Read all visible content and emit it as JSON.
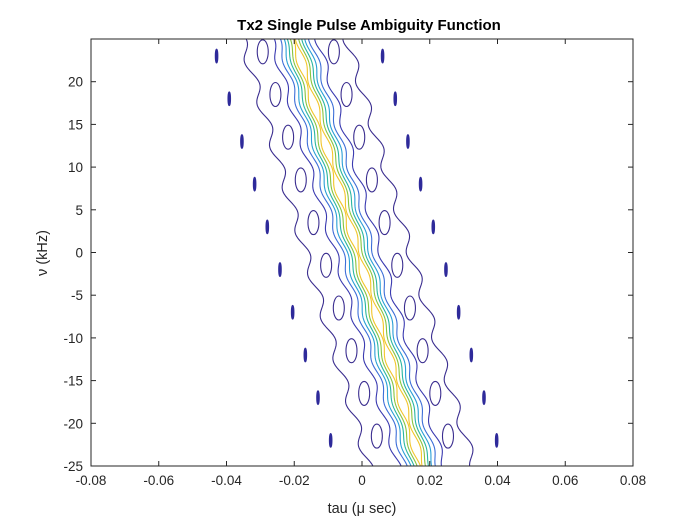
{
  "chart_data": {
    "type": "contour",
    "title": "Tx2 Single Pulse Ambiguity Function",
    "xlabel": "tau (μ sec)",
    "ylabel": "ν (kHz)",
    "xlim": [
      -0.08,
      0.08
    ],
    "ylim": [
      -25,
      25
    ],
    "x_ticks": [
      "-0.08",
      "-0.06",
      "-0.04",
      "-0.02",
      "0",
      "0.02",
      "0.04",
      "0.06",
      "0.08"
    ],
    "y_ticks": [
      "-25",
      "-20",
      "-15",
      "-10",
      "-5",
      "0",
      "5",
      "10",
      "15",
      "20"
    ],
    "ridge": {
      "tau_at_nu_top": -0.0197,
      "tau_at_nu_bottom": 0.0175,
      "nu_top": 24.7,
      "nu_bottom": -25
    },
    "levels": [
      {
        "offset": -0.0155,
        "color": "#3a2d8f",
        "wiggle": 0.0013
      },
      {
        "offset": 0.0155,
        "color": "#3a2d8f",
        "wiggle": 0.0013
      },
      {
        "offset": -0.0068,
        "color": "#3a3ab0",
        "wiggle": 0.0009
      },
      {
        "offset": 0.0068,
        "color": "#3a3ab0",
        "wiggle": 0.0009
      },
      {
        "offset": -0.0048,
        "color": "#3d6fd8",
        "wiggle": 0.0007
      },
      {
        "offset": 0.0048,
        "color": "#3d6fd8",
        "wiggle": 0.0007
      },
      {
        "offset": -0.0036,
        "color": "#2a9fd6",
        "wiggle": 0.0006
      },
      {
        "offset": 0.0036,
        "color": "#2a9fd6",
        "wiggle": 0.0006
      },
      {
        "offset": -0.0026,
        "color": "#2ab6a0",
        "wiggle": 0.0005
      },
      {
        "offset": 0.0026,
        "color": "#2ab6a0",
        "wiggle": 0.0005
      },
      {
        "offset": -0.0017,
        "color": "#88c440",
        "wiggle": 0.0005
      },
      {
        "offset": 0.0017,
        "color": "#88c440",
        "wiggle": 0.0005
      },
      {
        "offset": -0.0008,
        "color": "#f2c52a",
        "wiggle": 0.0006
      },
      {
        "offset": 0.0008,
        "color": "#f2c52a",
        "wiggle": 0.0006
      }
    ],
    "sidelobe_lobes": {
      "color": "#3a2d8f",
      "offsets": [
        -0.0105,
        0.0105
      ],
      "nu_values": [
        -21.5,
        -16.5,
        -11.5,
        -6.5,
        -1.5,
        3.5,
        8.5,
        13.5,
        18.5,
        23.5
      ]
    },
    "sidelobe_marks": {
      "color": "#2e2a9a",
      "offsets": [
        -0.0245,
        0.0245
      ],
      "nu_values": [
        -22,
        -17,
        -12,
        -7,
        -2,
        3,
        8,
        13,
        18,
        23
      ]
    }
  }
}
